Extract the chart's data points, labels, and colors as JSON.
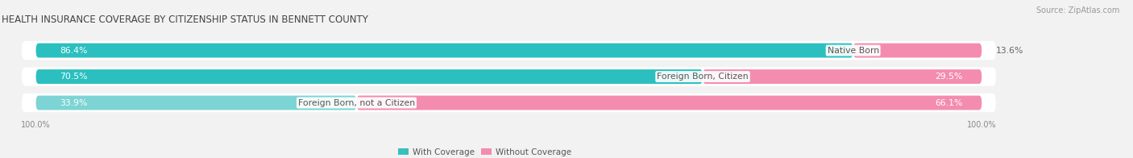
{
  "title": "HEALTH INSURANCE COVERAGE BY CITIZENSHIP STATUS IN BENNETT COUNTY",
  "source": "Source: ZipAtlas.com",
  "categories": [
    "Native Born",
    "Foreign Born, Citizen",
    "Foreign Born, not a Citizen"
  ],
  "with_coverage": [
    86.4,
    70.5,
    33.9
  ],
  "without_coverage": [
    13.6,
    29.5,
    66.1
  ],
  "color_with_1": "#2bbfbf",
  "color_with_2": "#2bbfbf",
  "color_with_3": "#7dd4d4",
  "color_without_1": "#f48cb0",
  "color_without_2": "#f48cb0",
  "color_without_3": "#f48cb0",
  "color_legend_with": "#3abfbf",
  "color_legend_without": "#f48cb0",
  "bg_color": "#f2f2f2",
  "bar_bg": "#e0e0e0",
  "row_bg": "#ffffff",
  "separator_color": "#f2f2f2",
  "title_fontsize": 8.5,
  "label_fontsize": 7.8,
  "pct_fontsize": 7.8,
  "source_fontsize": 7.0,
  "axis_fontsize": 7.0,
  "legend_fontsize": 7.5,
  "bar_height": 0.55,
  "total_width": 100.0,
  "xlim_left": -2,
  "xlim_right": 115
}
